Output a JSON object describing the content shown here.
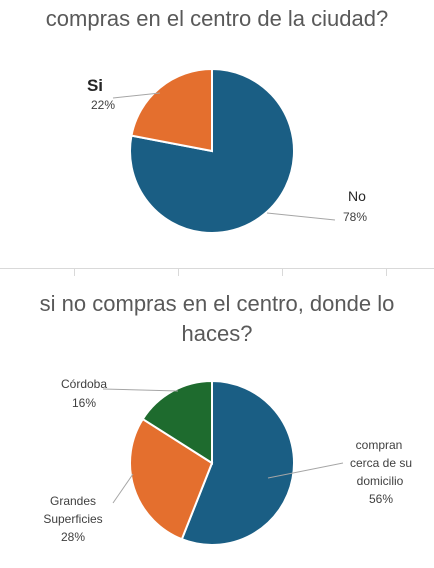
{
  "chart_data": [
    {
      "type": "pie",
      "title": "compras en el centro de la ciudad?",
      "categories": [
        "No",
        "Si"
      ],
      "values": [
        78,
        22
      ],
      "labels": [
        "No",
        "Si"
      ],
      "percent_labels": [
        "78%",
        "22%"
      ],
      "colors": [
        "#1a5e84",
        "#e46f2e"
      ]
    },
    {
      "type": "pie",
      "title": "si no compras en el centro, donde lo haces?",
      "categories": [
        "compran cerca de su domicilio",
        "Grandes Superficies",
        "Córdoba"
      ],
      "values": [
        56,
        28,
        16
      ],
      "labels": [
        "compran cerca de su domicilio",
        "Grandes Superficies",
        "Córdoba"
      ],
      "percent_labels": [
        "56%",
        "28%",
        "16%"
      ],
      "colors": [
        "#1a5e84",
        "#e46f2e",
        "#1e6b2e"
      ]
    }
  ]
}
